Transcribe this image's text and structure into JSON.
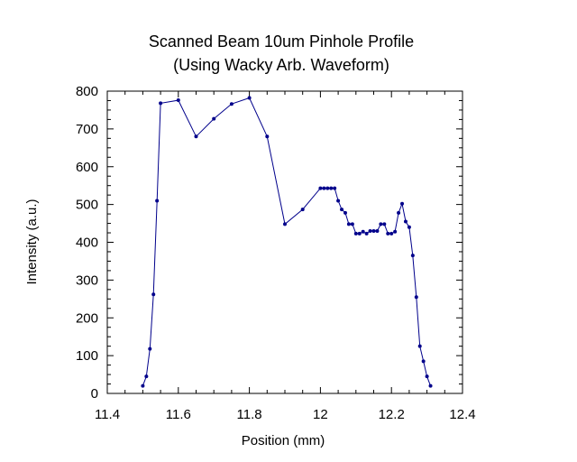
{
  "chart_data": {
    "type": "line",
    "title": "Scanned Beam 10um Pinhole Profile",
    "subtitle": "(Using Wacky Arb. Waveform)",
    "xlabel": "Position (mm)",
    "ylabel": "Intensity (a.u.)",
    "xlim": [
      11.4,
      12.4
    ],
    "ylim": [
      0,
      800
    ],
    "xticks": [
      11.4,
      11.6,
      11.8,
      12,
      12.2,
      12.4
    ],
    "xtick_labels": [
      "11.4",
      "11.6",
      "11.8",
      "12",
      "12.2",
      "12.4"
    ],
    "yticks": [
      0,
      100,
      200,
      300,
      400,
      500,
      600,
      700,
      800
    ],
    "ytick_labels": [
      "0",
      "100",
      "200",
      "300",
      "400",
      "500",
      "600",
      "700",
      "800"
    ],
    "grid": false,
    "legend": "none",
    "series": [
      {
        "color": "#00008b",
        "marker": "circle",
        "x": [
          11.5,
          11.51,
          11.52,
          11.53,
          11.54,
          11.55,
          11.6,
          11.65,
          11.7,
          11.75,
          11.8,
          11.85,
          11.9,
          11.95,
          12.0,
          12.01,
          12.02,
          12.03,
          12.04,
          12.05,
          12.06,
          12.07,
          12.08,
          12.09,
          12.1,
          12.11,
          12.12,
          12.13,
          12.14,
          12.15,
          12.16,
          12.17,
          12.18,
          12.19,
          12.2,
          12.21,
          12.22,
          12.23,
          12.24,
          12.25,
          12.26,
          12.27,
          12.28,
          12.29,
          12.3,
          12.31
        ],
        "y": [
          20,
          45,
          118,
          262,
          510,
          768,
          776,
          680,
          727,
          766,
          782,
          680,
          448,
          487,
          543,
          543,
          543,
          543,
          543,
          510,
          487,
          478,
          448,
          448,
          423,
          423,
          428,
          423,
          430,
          430,
          430,
          448,
          448,
          423,
          423,
          428,
          478,
          502,
          455,
          440,
          365,
          255,
          125,
          85,
          45,
          20
        ]
      }
    ]
  }
}
